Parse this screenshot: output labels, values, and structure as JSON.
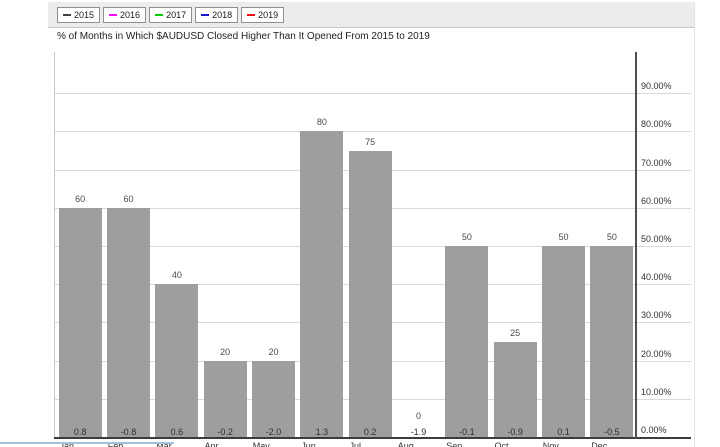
{
  "title": "% of Months in Which $AUDUSD Closed Higher Than It Opened From 2015 to 2019",
  "legend": {
    "items": [
      {
        "label": "2015",
        "color": "#3d3d3d"
      },
      {
        "label": "2016",
        "color": "#ff00ff"
      },
      {
        "label": "2017",
        "color": "#00cc00"
      },
      {
        "label": "2018",
        "color": "#1818cc"
      },
      {
        "label": "2019",
        "color": "#ee1111"
      }
    ]
  },
  "chart_data": {
    "type": "bar",
    "title": "% of Months in Which $AUDUSD Closed Higher Than It Opened From 2015 to 2019",
    "categories": [
      "Jan",
      "Feb",
      "Mar",
      "Apr",
      "May",
      "Jun",
      "Jul",
      "Aug",
      "Sep",
      "Oct",
      "Nov",
      "Dec"
    ],
    "values": [
      60,
      60,
      40,
      20,
      20,
      80,
      75,
      0,
      50,
      25,
      50,
      50
    ],
    "value_labels": [
      "60",
      "60",
      "40",
      "20",
      "20",
      "80",
      "75",
      "0",
      "50",
      "25",
      "50",
      "50"
    ],
    "baseline_values": [
      "0.8",
      "-0.8",
      "0.6",
      "-0.2",
      "-2.0",
      "1.3",
      "0.2",
      "-1.9",
      "-0.1",
      "-0.9",
      "0.1",
      "-0.5"
    ],
    "y_tick_labels": [
      "0.00%",
      "10.00%",
      "20.00%",
      "30.00%",
      "40.00%",
      "50.00%",
      "60.00%",
      "70.00%",
      "80.00%",
      "90.00%"
    ],
    "ylim": [
      0,
      100
    ],
    "grid": true,
    "y_axis_side": "right",
    "legend_position": "top-left",
    "legend_years": [
      "2015",
      "2016",
      "2017",
      "2018",
      "2019"
    ],
    "bar_color": "#9e9e9e"
  }
}
